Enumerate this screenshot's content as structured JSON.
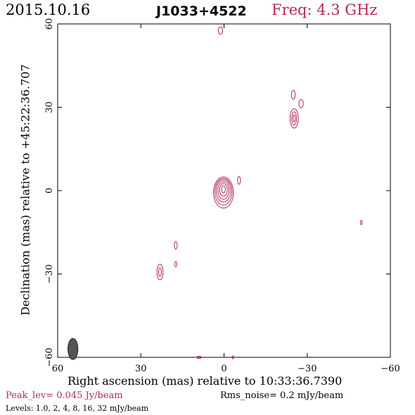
{
  "header": {
    "date": "2015.10.16",
    "source": "J1033+4522",
    "freq": "Freq: 4.3 GHz"
  },
  "footer": {
    "peak": "Peak_lev=  0.045 Jy/beam",
    "rms": "Rms_noise=   0.2 mJy/beam",
    "levels": "Levels: 1.0,    2,    4,    8,   16,   32 mJy/beam"
  },
  "colors": {
    "contour": "#b22a4f",
    "beam": "#555555",
    "axes": "#000000"
  },
  "chart_data": {
    "type": "contour",
    "xlabel": "Right ascension (mas) relative to 10:33:36.7390",
    "ylabel": "Declination (mas) relative to +45:22:36.707",
    "xlim": [
      60,
      -60
    ],
    "ylim": [
      -60,
      60
    ],
    "xticks": [
      60,
      30,
      0,
      -30,
      -60
    ],
    "yticks": [
      -60,
      -30,
      0,
      30,
      60
    ],
    "xtick_labels": [
      "60",
      "30",
      "0",
      "−30",
      "−60"
    ],
    "ytick_labels": [
      "−60",
      "−30",
      "0",
      "30",
      "60"
    ],
    "contour_levels_mJy": [
      1.0,
      2,
      4,
      8,
      16,
      32
    ],
    "beam": {
      "x": 54.5,
      "y": -57,
      "major_mas": 3.8,
      "minor_mas": 1.8,
      "pa_deg": 0
    },
    "components": [
      {
        "name": "core",
        "x": 0.2,
        "y": 0.5,
        "levels": [
          {
            "rx": 3.6,
            "ry": 5.6,
            "dy": -1.2
          },
          {
            "rx": 3.1,
            "ry": 4.8,
            "dy": -0.9
          },
          {
            "rx": 2.6,
            "ry": 4.0,
            "dy": -0.6
          },
          {
            "rx": 2.0,
            "ry": 3.2,
            "dy": -0.4
          },
          {
            "rx": 1.4,
            "ry": 2.3,
            "dy": -0.2
          },
          {
            "rx": 0.7,
            "ry": 1.3,
            "dy": 0
          }
        ]
      },
      {
        "name": "jet-ne-a",
        "x": -25.3,
        "y": 26.0,
        "levels": [
          {
            "rx": 1.5,
            "ry": 3.5
          },
          {
            "rx": 0.9,
            "ry": 2.4
          },
          {
            "rx": 0.4,
            "ry": 1.3
          }
        ]
      },
      {
        "name": "jet-ne-b",
        "x": -25.0,
        "y": 34.5,
        "levels": [
          {
            "rx": 0.7,
            "ry": 1.6
          }
        ]
      },
      {
        "name": "jet-ne-c",
        "x": -27.8,
        "y": 31.3,
        "levels": [
          {
            "rx": 0.8,
            "ry": 1.5
          }
        ]
      },
      {
        "name": "north-blob",
        "x": 1.3,
        "y": 57.6,
        "levels": [
          {
            "rx": 0.8,
            "ry": 1.3
          }
        ]
      },
      {
        "name": "east-blob",
        "x": -5.4,
        "y": 3.7,
        "levels": [
          {
            "rx": 0.5,
            "ry": 1.4
          }
        ]
      },
      {
        "name": "sw-a",
        "x": 23.1,
        "y": -29.3,
        "levels": [
          {
            "rx": 1.1,
            "ry": 2.8
          },
          {
            "rx": 0.5,
            "ry": 1.5
          }
        ]
      },
      {
        "name": "sw-b",
        "x": 17.4,
        "y": -19.7,
        "levels": [
          {
            "rx": 0.5,
            "ry": 1.4
          }
        ]
      },
      {
        "name": "sw-c",
        "x": 17.4,
        "y": -26.5,
        "levels": [
          {
            "rx": 0.4,
            "ry": 1.0
          }
        ]
      },
      {
        "name": "far-west",
        "x": -49.5,
        "y": -11.5,
        "levels": [
          {
            "rx": 0.3,
            "ry": 0.8
          }
        ]
      },
      {
        "name": "bottom-a",
        "x": 9.0,
        "y": -60.0,
        "levels": [
          {
            "rx": 0.8,
            "ry": 0.4
          }
        ]
      },
      {
        "name": "bottom-b",
        "x": -3.2,
        "y": -60.0,
        "levels": [
          {
            "rx": 0.3,
            "ry": 0.5
          }
        ]
      }
    ]
  }
}
